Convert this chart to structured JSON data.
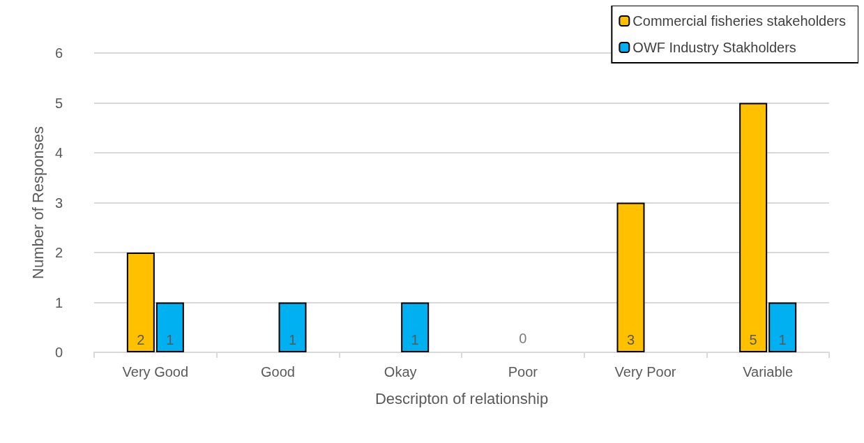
{
  "chart_data": {
    "type": "bar",
    "xlabel": "Descripton of relationship",
    "ylabel": "Number of Responses",
    "categories": [
      "Very Good",
      "Good",
      "Okay",
      "Poor",
      "Very Poor",
      "Variable"
    ],
    "series": [
      {
        "name": "Commercial fisheries stakeholders",
        "color": "#ffc000",
        "values": [
          2,
          0,
          0,
          0,
          3,
          5
        ],
        "value_labels": [
          "2",
          null,
          null,
          null,
          "3",
          "5"
        ]
      },
      {
        "name": "OWF Industry Stakholders",
        "color": "#00b0f0",
        "values": [
          1,
          1,
          1,
          0,
          0,
          1
        ],
        "value_labels": [
          "1",
          "1",
          "1",
          null,
          null,
          "1"
        ]
      }
    ],
    "annotations": [
      {
        "text": "0",
        "x": "Poor",
        "y": 0
      }
    ],
    "ylim": [
      0,
      6
    ],
    "yticks": [
      0,
      1,
      2,
      3,
      4,
      5,
      6
    ],
    "grid": "y",
    "legend": "top right"
  }
}
